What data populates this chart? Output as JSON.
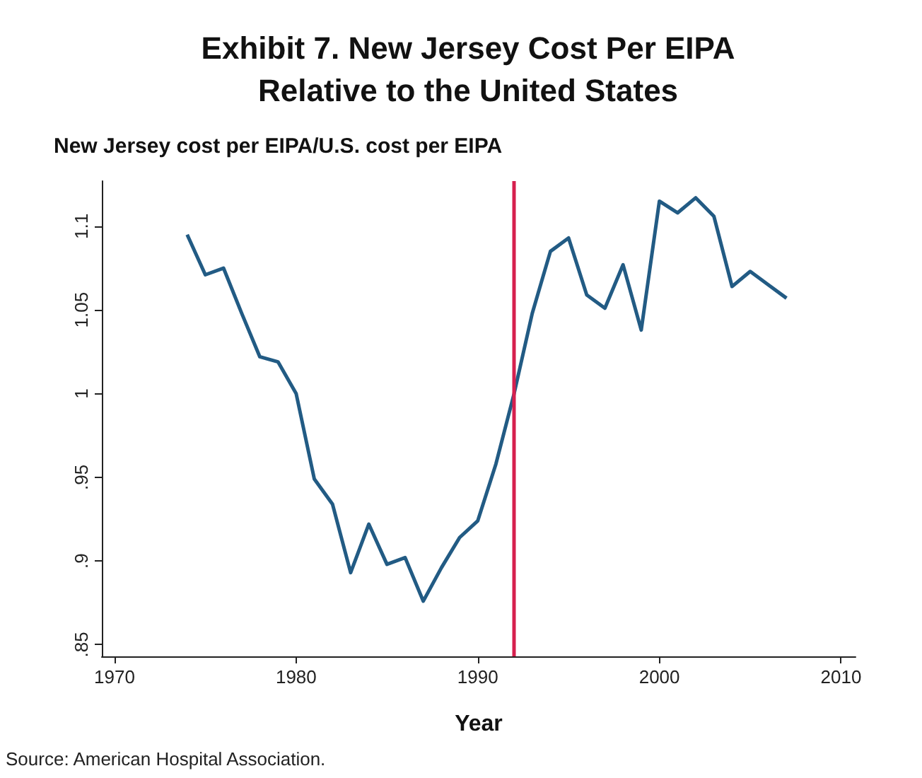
{
  "chart_data": {
    "type": "line",
    "title": "Exhibit 7. New Jersey Cost Per EIPA\nRelative to the United States",
    "ylabel": "New Jersey cost per EIPA/U.S. cost per EIPA",
    "xlabel": "Year",
    "annotations": [
      "Source: American Hospital Association."
    ],
    "x": [
      1974,
      1975,
      1976,
      1977,
      1978,
      1979,
      1980,
      1981,
      1982,
      1983,
      1984,
      1985,
      1986,
      1987,
      1988,
      1989,
      1990,
      1991,
      1992,
      1993,
      1994,
      1995,
      1996,
      1997,
      1998,
      1999,
      2000,
      2001,
      2002,
      2003,
      2004,
      2005,
      2006,
      2007
    ],
    "series": [
      {
        "color": "#225b84",
        "values": [
          1.095,
          1.071,
          1.075,
          1.048,
          1.022,
          1.019,
          1.0,
          0.949,
          0.934,
          0.893,
          0.922,
          0.898,
          0.902,
          0.876,
          0.896,
          0.914,
          0.924,
          0.958,
          1.0,
          1.048,
          1.085,
          1.093,
          1.059,
          1.051,
          1.077,
          1.038,
          1.115,
          1.108,
          1.117,
          1.106,
          1.064,
          1.073,
          1.065,
          1.057
        ]
      }
    ],
    "xlim": [
      1969.3,
      2010.8
    ],
    "xticks": [
      1970,
      1980,
      1990,
      2000,
      2010
    ],
    "ylim": [
      0.843,
      1.127
    ],
    "yticks": [
      {
        "value": 0.85,
        "label": ".85"
      },
      {
        "value": 0.9,
        "label": ".9"
      },
      {
        "value": 0.95,
        "label": ".95"
      },
      1,
      {
        "value": 1.05,
        "label": "1.05"
      },
      {
        "value": 1.1,
        "label": "1.1"
      }
    ],
    "ref_lines": [
      {
        "axis": "x",
        "value": 1992,
        "color": "#d6204e"
      }
    ],
    "grid": false,
    "marker": "none",
    "line_style": "solid"
  }
}
